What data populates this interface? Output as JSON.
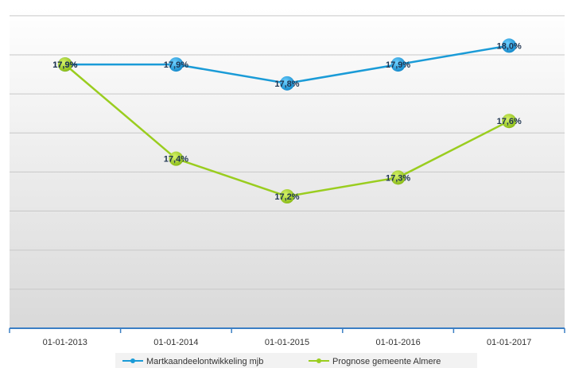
{
  "chart_data": {
    "type": "line",
    "title": "",
    "xlabel": "",
    "ylabel": "",
    "categories": [
      "01-01-2013",
      "01-01-2014",
      "01-01-2015",
      "01-01-2016",
      "01-01-2017"
    ],
    "ylim": [
      16.5,
      18.2
    ],
    "grid": true,
    "legend": "bottom",
    "series": [
      {
        "name": "Martkaandeelontwikkeling mjb",
        "values": [
          17.9,
          17.9,
          17.8,
          17.9,
          18.0
        ],
        "labels": [
          "17,9%",
          "17,9%",
          "17,8%",
          "17,9%",
          "18,0%"
        ],
        "color": "#1a9bd7"
      },
      {
        "name": "Prognose gemeente Almere",
        "values": [
          17.9,
          17.4,
          17.2,
          17.3,
          17.6
        ],
        "labels": [
          "17,9%",
          "17,4%",
          "17,2%",
          "17,3%",
          "17,6%"
        ],
        "color": "#9acd1f"
      }
    ]
  }
}
